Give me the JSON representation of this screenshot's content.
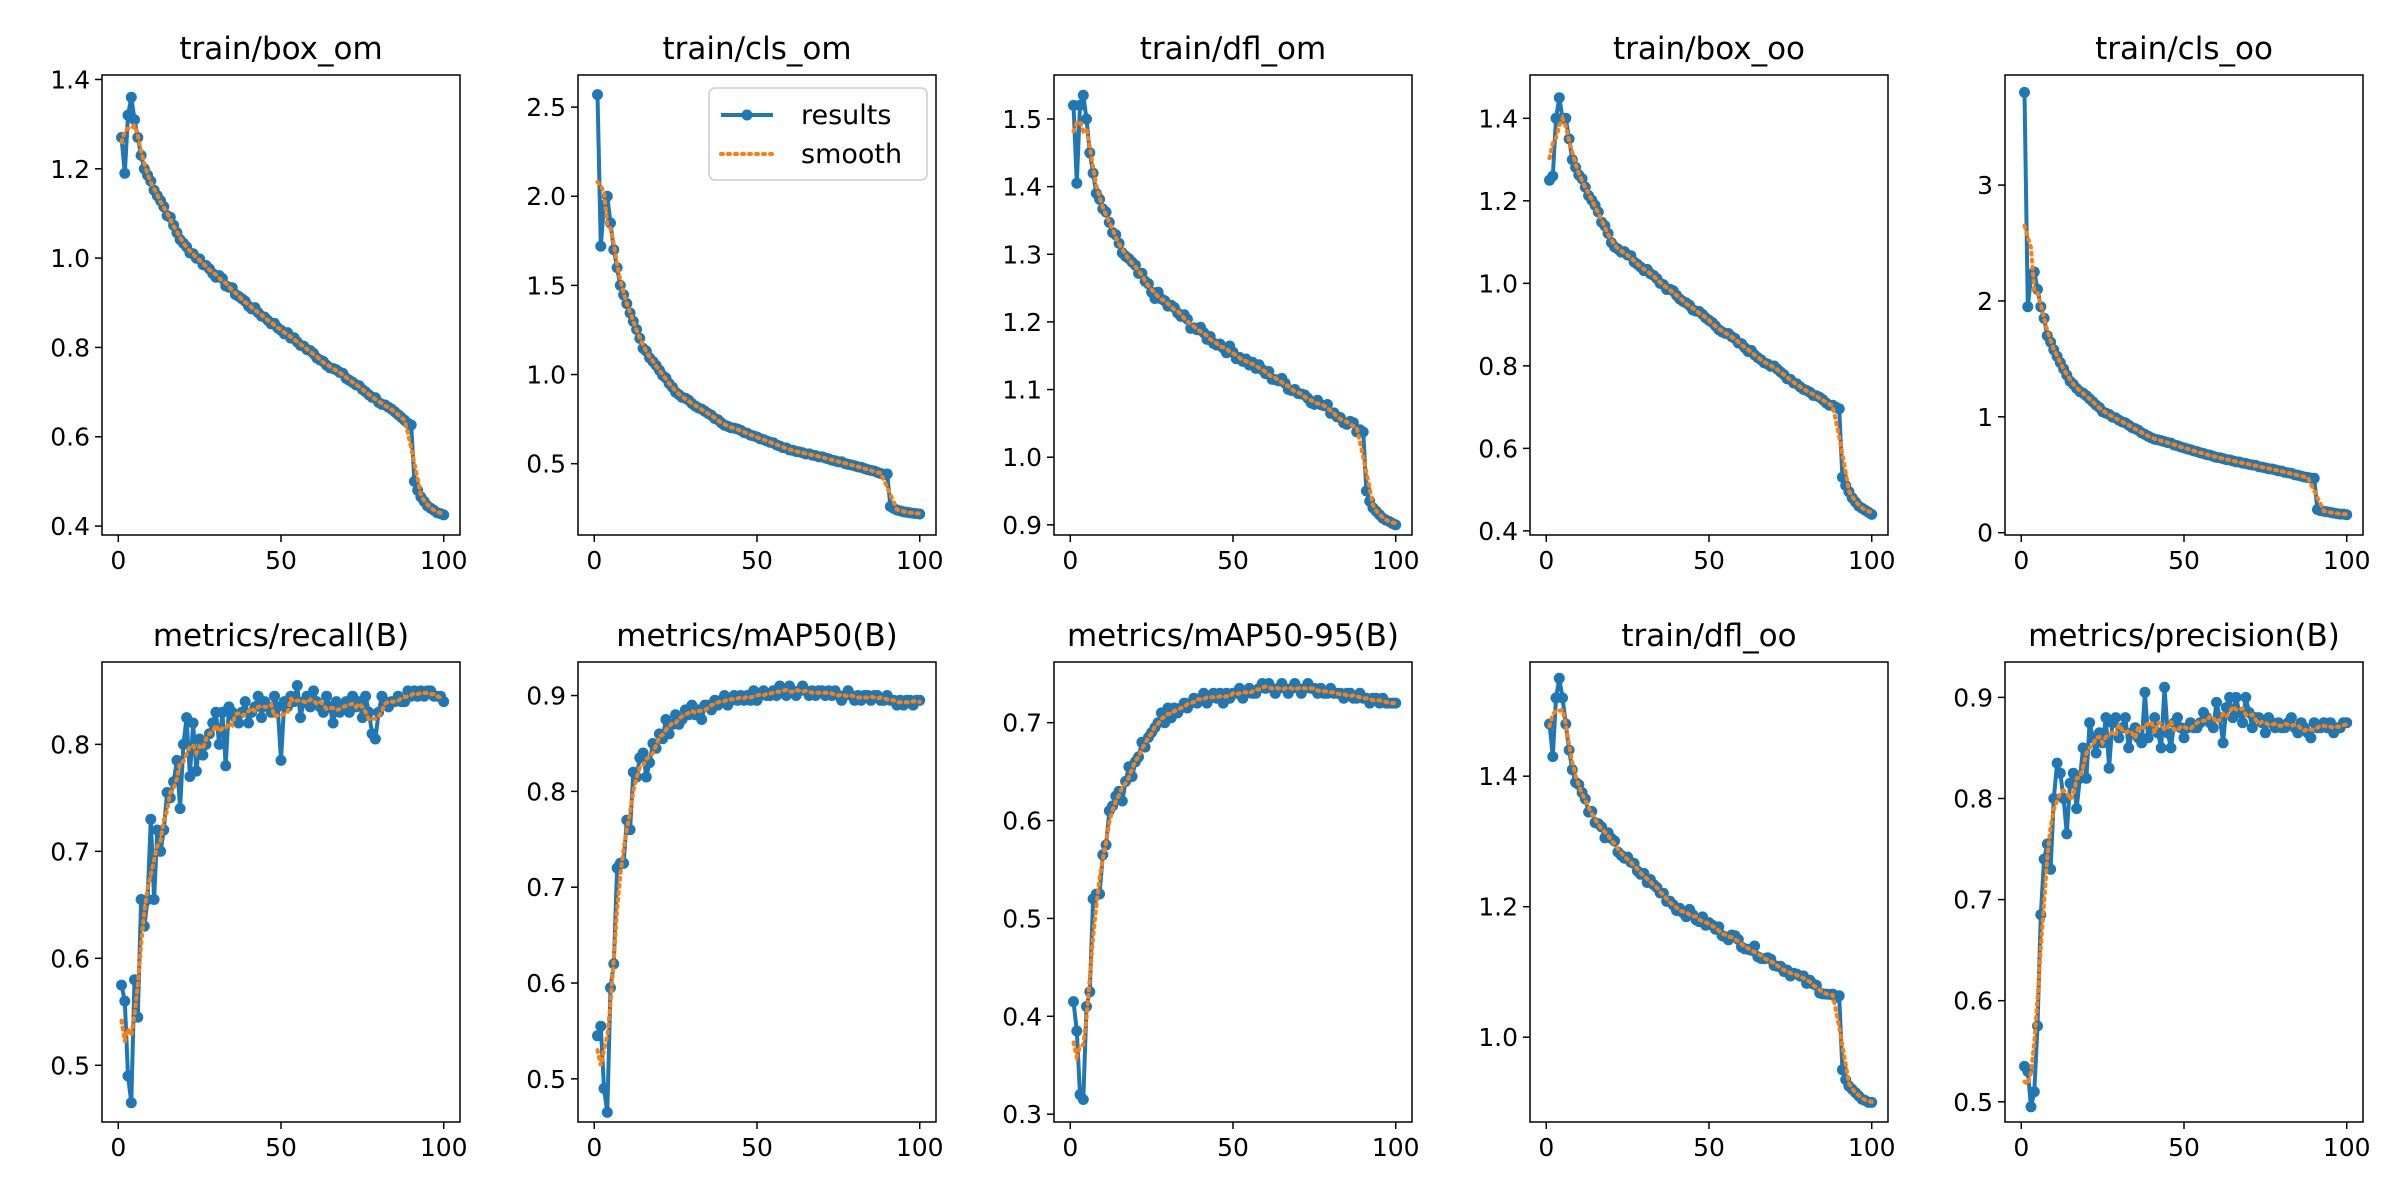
{
  "colors": {
    "results": "#1f77b4",
    "smooth": "#ff7f0e"
  },
  "legend": {
    "results_label": "results",
    "smooth_label": "smooth",
    "placement": "upper-right"
  },
  "chart_data": [
    {
      "type": "line",
      "title": "train/box_om",
      "xlim": [
        -5,
        105
      ],
      "ylim": [
        0.38,
        1.41
      ],
      "xticks": [
        0,
        50,
        100
      ],
      "xtick_labels": [
        "0",
        "50",
        "100"
      ],
      "yticks": [
        0.4,
        0.6,
        0.8,
        1.0,
        1.2,
        1.4
      ],
      "ytick_labels": [
        "0.4",
        "0.6",
        "0.8",
        "1.0",
        "1.2",
        "1.4"
      ],
      "head": [
        1.27,
        1.19,
        1.32,
        1.36,
        1.31,
        1.27,
        1.23,
        1.2
      ],
      "anchors": [
        [
          8,
          1.2
        ],
        [
          20,
          1.03
        ],
        [
          40,
          0.895
        ],
        [
          60,
          0.785
        ],
        [
          80,
          0.68
        ],
        [
          89,
          0.63
        ]
      ],
      "tail": [
        0.5,
        0.48,
        0.465,
        0.455,
        0.445,
        0.44,
        0.435,
        0.43,
        0.428,
        0.425
      ],
      "legend": false
    },
    {
      "type": "line",
      "title": "train/cls_om",
      "xlim": [
        -5,
        105
      ],
      "ylim": [
        0.1,
        2.68
      ],
      "xticks": [
        0,
        50,
        100
      ],
      "xtick_labels": [
        "0",
        "50",
        "100"
      ],
      "yticks": [
        0.5,
        1.0,
        1.5,
        2.0,
        2.5
      ],
      "ytick_labels": [
        "0.5",
        "1.0",
        "1.5",
        "2.0",
        "2.5"
      ],
      "head": [
        2.57,
        1.72,
        1.95,
        2.0,
        1.85,
        1.7,
        1.6,
        1.5
      ],
      "anchors": [
        [
          8,
          1.5
        ],
        [
          15,
          1.15
        ],
        [
          25,
          0.9
        ],
        [
          40,
          0.72
        ],
        [
          60,
          0.58
        ],
        [
          80,
          0.49
        ],
        [
          89,
          0.44
        ]
      ],
      "tail": [
        0.26,
        0.25,
        0.24,
        0.235,
        0.23,
        0.228,
        0.225,
        0.222,
        0.22,
        0.218
      ],
      "legend": true
    },
    {
      "type": "line",
      "title": "train/dfl_om",
      "xlim": [
        -5,
        105
      ],
      "ylim": [
        0.885,
        1.565
      ],
      "xticks": [
        0,
        50,
        100
      ],
      "xtick_labels": [
        "0",
        "50",
        "100"
      ],
      "yticks": [
        0.9,
        1.0,
        1.1,
        1.2,
        1.3,
        1.4,
        1.5
      ],
      "ytick_labels": [
        "0.9",
        "1.0",
        "1.1",
        "1.2",
        "1.3",
        "1.4",
        "1.5"
      ],
      "head": [
        1.52,
        1.405,
        1.52,
        1.535,
        1.5,
        1.45,
        1.42,
        1.39
      ],
      "anchors": [
        [
          8,
          1.39
        ],
        [
          15,
          1.31
        ],
        [
          25,
          1.245
        ],
        [
          40,
          1.185
        ],
        [
          60,
          1.125
        ],
        [
          80,
          1.07
        ],
        [
          89,
          1.04
        ]
      ],
      "tail": [
        0.95,
        0.935,
        0.925,
        0.92,
        0.915,
        0.91,
        0.907,
        0.905,
        0.902,
        0.9
      ],
      "legend": false
    },
    {
      "type": "line",
      "title": "train/box_oo",
      "xlim": [
        -5,
        105
      ],
      "ylim": [
        0.39,
        1.505
      ],
      "xticks": [
        0,
        50,
        100
      ],
      "xtick_labels": [
        "0",
        "50",
        "100"
      ],
      "yticks": [
        0.4,
        0.6,
        0.8,
        1.0,
        1.2,
        1.4
      ],
      "ytick_labels": [
        "0.4",
        "0.6",
        "0.8",
        "1.0",
        "1.2",
        "1.4"
      ],
      "head": [
        1.25,
        1.26,
        1.4,
        1.45,
        1.4,
        1.4,
        1.35,
        1.3
      ],
      "anchors": [
        [
          8,
          1.3
        ],
        [
          20,
          1.1
        ],
        [
          40,
          0.97
        ],
        [
          60,
          0.85
        ],
        [
          80,
          0.74
        ],
        [
          89,
          0.7
        ]
      ],
      "tail": [
        0.53,
        0.51,
        0.495,
        0.48,
        0.47,
        0.46,
        0.455,
        0.45,
        0.445,
        0.44
      ],
      "legend": false
    },
    {
      "type": "line",
      "title": "train/cls_oo",
      "xlim": [
        -5,
        105
      ],
      "ylim": [
        -0.02,
        3.95
      ],
      "xticks": [
        0,
        50,
        100
      ],
      "xtick_labels": [
        "0",
        "50",
        "100"
      ],
      "yticks": [
        0,
        1,
        2,
        3
      ],
      "ytick_labels": [
        "0",
        "1",
        "2",
        "3"
      ],
      "head": [
        3.8,
        1.95,
        2.2,
        2.25,
        2.1,
        1.95,
        1.85,
        1.7
      ],
      "anchors": [
        [
          8,
          1.7
        ],
        [
          15,
          1.3
        ],
        [
          25,
          1.05
        ],
        [
          40,
          0.82
        ],
        [
          60,
          0.65
        ],
        [
          80,
          0.53
        ],
        [
          89,
          0.47
        ]
      ],
      "tail": [
        0.2,
        0.19,
        0.185,
        0.18,
        0.175,
        0.17,
        0.165,
        0.16,
        0.16,
        0.155
      ],
      "legend": false
    },
    {
      "type": "line",
      "title": "metrics/recall(B)",
      "xlim": [
        -5,
        105
      ],
      "ylim": [
        0.447,
        0.877
      ],
      "xticks": [
        0,
        50,
        100
      ],
      "xtick_labels": [
        "0",
        "50",
        "100"
      ],
      "yticks": [
        0.5,
        0.6,
        0.7,
        0.8
      ],
      "ytick_labels": [
        "0.5",
        "0.6",
        "0.7",
        "0.8"
      ],
      "values": [
        0.575,
        0.56,
        0.49,
        0.465,
        0.58,
        0.545,
        0.655,
        0.63,
        0.655,
        0.73,
        0.655,
        0.72,
        0.7,
        0.72,
        0.755,
        0.75,
        0.765,
        0.785,
        0.74,
        0.8,
        0.825,
        0.77,
        0.82,
        0.775,
        0.805,
        0.79,
        0.8,
        0.81,
        0.82,
        0.83,
        0.8,
        0.83,
        0.78,
        0.835,
        0.83,
        0.825,
        0.82,
        0.83,
        0.84,
        0.82,
        0.83,
        0.835,
        0.845,
        0.825,
        0.84,
        0.835,
        0.83,
        0.845,
        0.835,
        0.785,
        0.84,
        0.835,
        0.845,
        0.84,
        0.855,
        0.825,
        0.84,
        0.845,
        0.835,
        0.85,
        0.84,
        0.835,
        0.83,
        0.845,
        0.835,
        0.82,
        0.84,
        0.83,
        0.835,
        0.84,
        0.83,
        0.845,
        0.835,
        0.84,
        0.825,
        0.845,
        0.83,
        0.81,
        0.805,
        0.83,
        0.845,
        0.84,
        0.835,
        0.84,
        0.84,
        0.845,
        0.84,
        0.84,
        0.85,
        0.845,
        0.85,
        0.845,
        0.85,
        0.845,
        0.85,
        0.85,
        0.845,
        0.845,
        0.845,
        0.84
      ],
      "legend": false
    },
    {
      "type": "line",
      "title": "metrics/mAP50(B)",
      "xlim": [
        -5,
        105
      ],
      "ylim": [
        0.455,
        0.935
      ],
      "xticks": [
        0,
        50,
        100
      ],
      "xtick_labels": [
        "0",
        "50",
        "100"
      ],
      "yticks": [
        0.5,
        0.6,
        0.7,
        0.8,
        0.9
      ],
      "ytick_labels": [
        "0.5",
        "0.6",
        "0.7",
        "0.8",
        "0.9"
      ],
      "values": [
        0.545,
        0.555,
        0.49,
        0.465,
        0.595,
        0.62,
        0.72,
        0.725,
        0.725,
        0.77,
        0.76,
        0.82,
        0.815,
        0.835,
        0.84,
        0.815,
        0.83,
        0.85,
        0.845,
        0.86,
        0.855,
        0.875,
        0.86,
        0.87,
        0.88,
        0.87,
        0.875,
        0.885,
        0.88,
        0.89,
        0.88,
        0.885,
        0.875,
        0.89,
        0.89,
        0.885,
        0.895,
        0.89,
        0.895,
        0.9,
        0.89,
        0.895,
        0.9,
        0.895,
        0.9,
        0.895,
        0.9,
        0.895,
        0.905,
        0.895,
        0.9,
        0.905,
        0.9,
        0.9,
        0.905,
        0.9,
        0.91,
        0.905,
        0.9,
        0.91,
        0.905,
        0.9,
        0.905,
        0.91,
        0.905,
        0.9,
        0.905,
        0.9,
        0.905,
        0.905,
        0.9,
        0.905,
        0.9,
        0.905,
        0.9,
        0.895,
        0.9,
        0.905,
        0.9,
        0.895,
        0.9,
        0.895,
        0.9,
        0.9,
        0.895,
        0.9,
        0.9,
        0.895,
        0.895,
        0.9,
        0.895,
        0.895,
        0.89,
        0.895,
        0.89,
        0.895,
        0.895,
        0.89,
        0.895,
        0.895
      ],
      "legend": false
    },
    {
      "type": "line",
      "title": "metrics/mAP50-95(B)",
      "xlim": [
        -5,
        105
      ],
      "ylim": [
        0.292,
        0.762
      ],
      "xticks": [
        0,
        50,
        100
      ],
      "xtick_labels": [
        "0",
        "50",
        "100"
      ],
      "yticks": [
        0.3,
        0.4,
        0.5,
        0.6,
        0.7
      ],
      "ytick_labels": [
        "0.3",
        "0.4",
        "0.5",
        "0.6",
        "0.7"
      ],
      "values": [
        0.415,
        0.385,
        0.32,
        0.315,
        0.41,
        0.425,
        0.52,
        0.525,
        0.525,
        0.565,
        0.575,
        0.61,
        0.615,
        0.625,
        0.63,
        0.62,
        0.64,
        0.655,
        0.645,
        0.66,
        0.665,
        0.68,
        0.675,
        0.685,
        0.69,
        0.695,
        0.7,
        0.71,
        0.7,
        0.715,
        0.705,
        0.715,
        0.71,
        0.715,
        0.72,
        0.715,
        0.72,
        0.725,
        0.72,
        0.725,
        0.73,
        0.72,
        0.725,
        0.73,
        0.725,
        0.73,
        0.72,
        0.73,
        0.725,
        0.73,
        0.73,
        0.735,
        0.725,
        0.73,
        0.735,
        0.73,
        0.73,
        0.735,
        0.74,
        0.735,
        0.74,
        0.735,
        0.73,
        0.735,
        0.74,
        0.735,
        0.73,
        0.735,
        0.74,
        0.735,
        0.73,
        0.735,
        0.74,
        0.735,
        0.735,
        0.73,
        0.735,
        0.73,
        0.73,
        0.735,
        0.73,
        0.73,
        0.73,
        0.725,
        0.73,
        0.73,
        0.725,
        0.725,
        0.73,
        0.725,
        0.725,
        0.72,
        0.725,
        0.725,
        0.72,
        0.725,
        0.72,
        0.72,
        0.72,
        0.72
      ],
      "legend": false
    },
    {
      "type": "line",
      "title": "train/dfl_oo",
      "xlim": [
        -5,
        105
      ],
      "ylim": [
        0.87,
        1.575
      ],
      "xticks": [
        0,
        50,
        100
      ],
      "xtick_labels": [
        "0",
        "50",
        "100"
      ],
      "yticks": [
        1.0,
        1.2,
        1.4
      ],
      "ytick_labels": [
        "1.0",
        "1.2",
        "1.4"
      ],
      "head": [
        1.48,
        1.43,
        1.52,
        1.55,
        1.52,
        1.48,
        1.44,
        1.41
      ],
      "anchors": [
        [
          8,
          1.41
        ],
        [
          15,
          1.33
        ],
        [
          25,
          1.27
        ],
        [
          40,
          1.2
        ],
        [
          60,
          1.145
        ],
        [
          80,
          1.085
        ],
        [
          89,
          1.06
        ]
      ],
      "tail": [
        0.95,
        0.935,
        0.925,
        0.92,
        0.915,
        0.91,
        0.905,
        0.903,
        0.9,
        0.9
      ],
      "legend": false
    },
    {
      "type": "line",
      "title": "metrics/precision(B)",
      "xlim": [
        -5,
        105
      ],
      "ylim": [
        0.48,
        0.935
      ],
      "xticks": [
        0,
        50,
        100
      ],
      "xtick_labels": [
        "0",
        "50",
        "100"
      ],
      "yticks": [
        0.5,
        0.6,
        0.7,
        0.8,
        0.9
      ],
      "ytick_labels": [
        "0.5",
        "0.6",
        "0.7",
        "0.8",
        "0.9"
      ],
      "values": [
        0.535,
        0.53,
        0.495,
        0.51,
        0.575,
        0.685,
        0.74,
        0.755,
        0.73,
        0.8,
        0.835,
        0.825,
        0.8,
        0.765,
        0.815,
        0.825,
        0.79,
        0.82,
        0.85,
        0.82,
        0.875,
        0.86,
        0.845,
        0.865,
        0.855,
        0.88,
        0.83,
        0.875,
        0.88,
        0.86,
        0.87,
        0.88,
        0.85,
        0.865,
        0.87,
        0.86,
        0.855,
        0.905,
        0.86,
        0.87,
        0.88,
        0.865,
        0.85,
        0.91,
        0.865,
        0.85,
        0.875,
        0.88,
        0.87,
        0.86,
        0.87,
        0.875,
        0.87,
        0.87,
        0.875,
        0.885,
        0.88,
        0.875,
        0.87,
        0.895,
        0.88,
        0.855,
        0.89,
        0.9,
        0.88,
        0.9,
        0.885,
        0.875,
        0.9,
        0.885,
        0.87,
        0.88,
        0.88,
        0.875,
        0.865,
        0.88,
        0.875,
        0.87,
        0.875,
        0.87,
        0.87,
        0.875,
        0.88,
        0.87,
        0.865,
        0.875,
        0.87,
        0.865,
        0.86,
        0.875,
        0.87,
        0.87,
        0.875,
        0.87,
        0.875,
        0.865,
        0.87,
        0.87,
        0.875,
        0.875
      ],
      "legend": false
    }
  ]
}
